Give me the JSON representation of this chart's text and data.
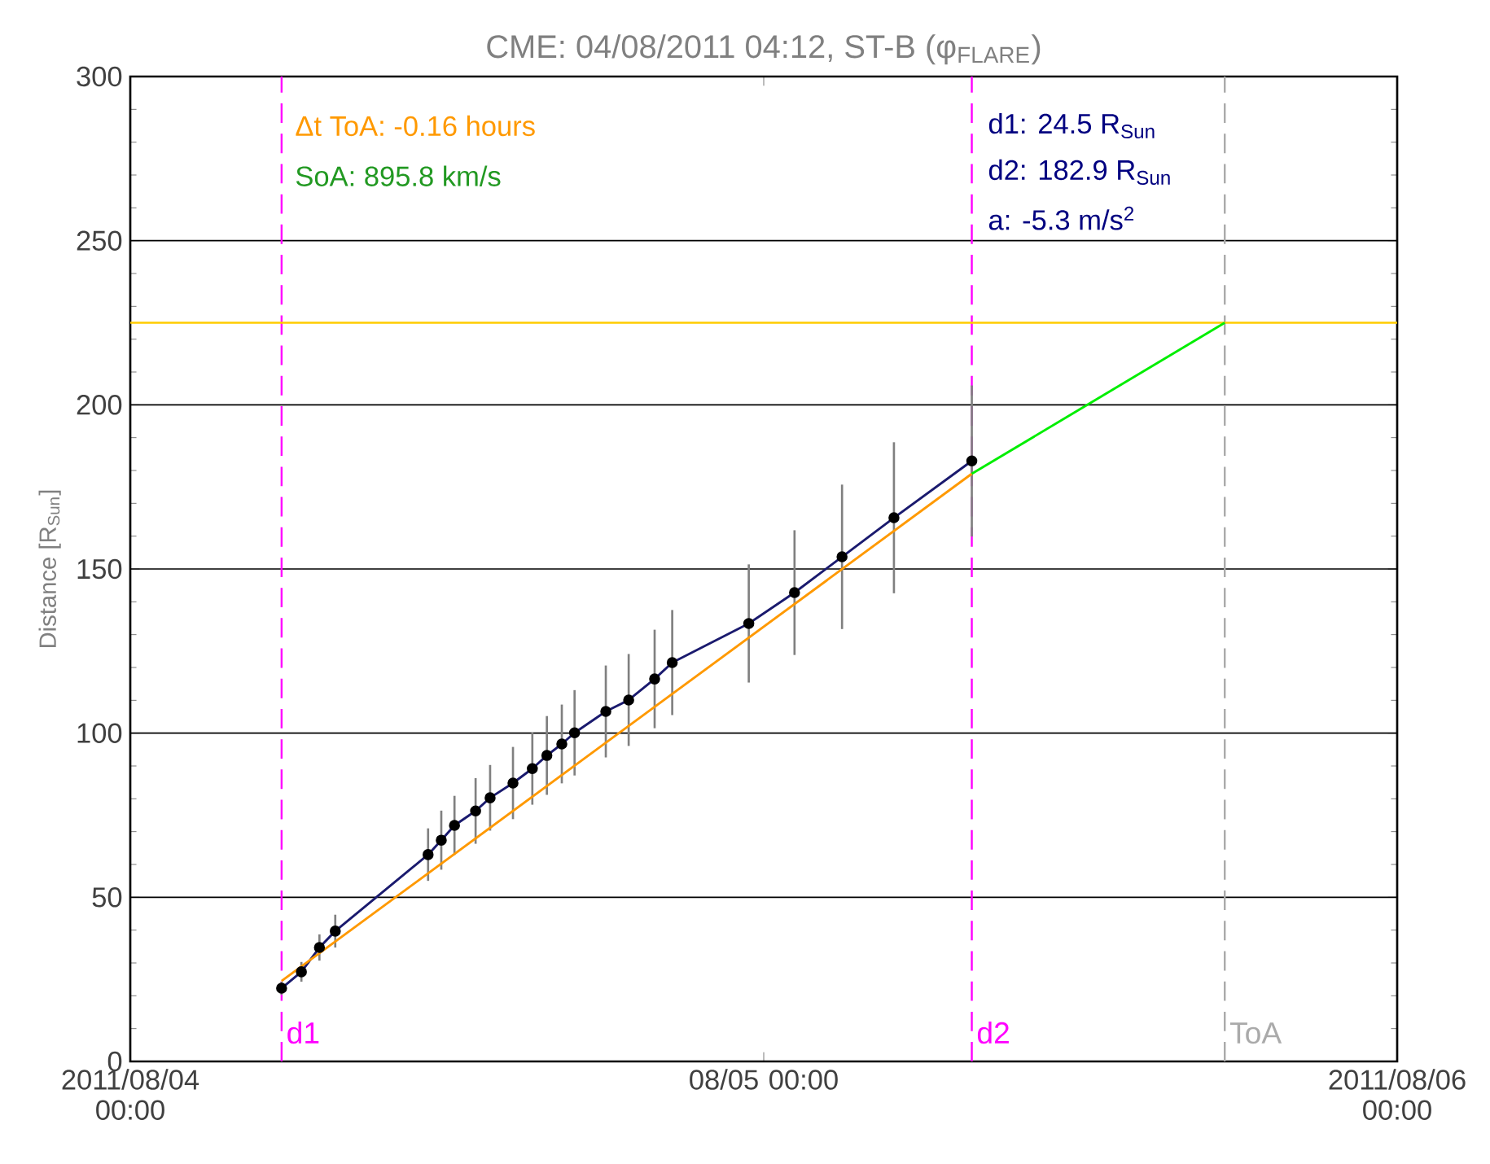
{
  "chart_data": {
    "type": "line",
    "title": "CME: 04/08/2011 04:12, ST-B (φ$_{FLARE}$)",
    "ylabel": "Distance [R$_{Sun}$]",
    "xlim": [
      "2011-08-04T00:00",
      "2011-08-06T00:00"
    ],
    "ylim": [
      0,
      300
    ],
    "xticks": [
      {
        "value": "2011-08-04T00:00",
        "label": "2011/08/04 00:00"
      },
      {
        "value": "2011-08-05T00:00",
        "label": "08/05 00:00"
      },
      {
        "value": "2011-08-06T00:00",
        "label": "2011/08/06 00:00"
      }
    ],
    "yticks": [
      0,
      50,
      100,
      150,
      200,
      250,
      300
    ],
    "grid": "y",
    "series": [
      {
        "color": "#1a1a6e",
        "marker": "circle",
        "line_style": "solid",
        "x": [
          "2011-08-04T05:44",
          "2011-08-04T06:29",
          "2011-08-04T07:10",
          "2011-08-04T07:46",
          "2011-08-04T11:17",
          "2011-08-04T11:47",
          "2011-08-04T12:17",
          "2011-08-04T13:05",
          "2011-08-04T13:38",
          "2011-08-04T14:30",
          "2011-08-04T15:14",
          "2011-08-04T15:47",
          "2011-08-04T16:21",
          "2011-08-04T16:50",
          "2011-08-04T18:01",
          "2011-08-04T18:53",
          "2011-08-04T19:52",
          "2011-08-04T20:32",
          "2011-08-04T23:26",
          "2011-08-05T01:10",
          "2011-08-05T02:58",
          "2011-08-05T04:56",
          "2011-08-05T07:53"
        ],
        "values": [
          22.3,
          27.3,
          34.7,
          39.7,
          63.0,
          67.4,
          71.9,
          76.3,
          80.3,
          84.8,
          89.2,
          93.2,
          96.7,
          100.1,
          106.6,
          110.1,
          116.5,
          121.5,
          133.4,
          142.8,
          153.7,
          165.6,
          182.9
        ],
        "errors": [
          2,
          3,
          4,
          5,
          8,
          9,
          9,
          10,
          10,
          11,
          11,
          12,
          12,
          13,
          14,
          14,
          15,
          16,
          18,
          19,
          22,
          23,
          23
        ]
      },
      {
        "color": "#ff9900",
        "marker": "none",
        "line_style": "solid",
        "x": [
          "2011-08-04T05:44",
          "2011-08-05T07:53"
        ],
        "values": [
          24.5,
          179
        ]
      },
      {
        "color": "#00ee00",
        "marker": "none",
        "line_style": "solid",
        "x": [
          "2011-08-05T07:53",
          "2011-08-05T17:28"
        ],
        "values": [
          179,
          225
        ]
      }
    ],
    "ref_lines": [
      {
        "axis": "x",
        "value": "2011-08-04T05:44",
        "label": "d1",
        "color": "#ff00ff",
        "line_style": "dashed"
      },
      {
        "axis": "x",
        "value": "2011-08-05T07:53",
        "label": "d2",
        "color": "#ff00ff",
        "line_style": "dashed"
      },
      {
        "axis": "x",
        "value": "2011-08-05T17:28",
        "label": "ToA",
        "color": "#aaaaaa",
        "line_style": "dashed"
      },
      {
        "axis": "y",
        "value": 225,
        "label": null,
        "color": "#ffcc00",
        "line_style": "solid"
      }
    ],
    "annotations": [
      "Δt ToA:  -0.16 hours",
      "SoA:  895.8 km/s",
      "d1:  24.5 R$_{Sun}$",
      "d2: 182.9 R$_{Sun}$",
      "a:    -5.3 m/s$^{2}$"
    ]
  }
}
